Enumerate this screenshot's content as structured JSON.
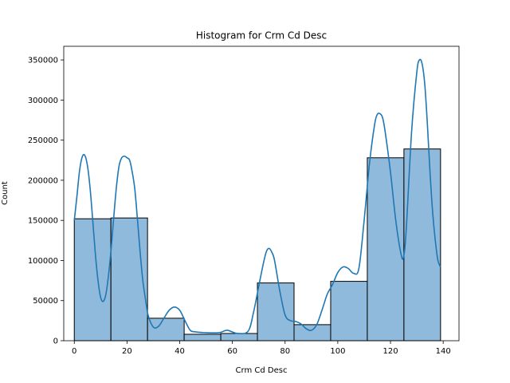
{
  "chart_data": {
    "type": "bar",
    "subtype": "histogram-with-kde",
    "title": "Histogram for Crm Cd Desc",
    "xlabel": "Crm Cd Desc",
    "ylabel": "Count",
    "xlim": [
      -4,
      146
    ],
    "ylim": [
      0,
      367000
    ],
    "xticks": [
      0,
      20,
      40,
      60,
      80,
      100,
      120,
      140
    ],
    "yticks": [
      0,
      50000,
      100000,
      150000,
      200000,
      250000,
      300000,
      350000
    ],
    "grid": false,
    "bins": [
      {
        "x0": 0,
        "x1": 13.9,
        "count": 152000
      },
      {
        "x0": 13.9,
        "x1": 27.8,
        "count": 153000
      },
      {
        "x0": 27.8,
        "x1": 41.7,
        "count": 28000
      },
      {
        "x0": 41.7,
        "x1": 55.6,
        "count": 8000
      },
      {
        "x0": 55.6,
        "x1": 69.5,
        "count": 9000
      },
      {
        "x0": 69.5,
        "x1": 83.4,
        "count": 72000
      },
      {
        "x0": 83.4,
        "x1": 97.3,
        "count": 20000
      },
      {
        "x0": 97.3,
        "x1": 111.2,
        "count": 74000
      },
      {
        "x0": 111.2,
        "x1": 125.1,
        "count": 228000
      },
      {
        "x0": 125.1,
        "x1": 139,
        "count": 239000
      }
    ],
    "kde": {
      "x": [
        0,
        1,
        2,
        3,
        4,
        5,
        6,
        7,
        8,
        9,
        10,
        11,
        12,
        13,
        14,
        15,
        16,
        17,
        18,
        19,
        20,
        21,
        22,
        23,
        24,
        25,
        26,
        27,
        28,
        30,
        32,
        34,
        36,
        38,
        40,
        42,
        44,
        46,
        50,
        55,
        58,
        62,
        66,
        68,
        70,
        72,
        73,
        74,
        75,
        76,
        78,
        80,
        82,
        84,
        86,
        88,
        90,
        92,
        94,
        96,
        98,
        100,
        102,
        104,
        106,
        108,
        110,
        112,
        114,
        115,
        116,
        117,
        118,
        120,
        122,
        124,
        125,
        126,
        128,
        130,
        131,
        132,
        133,
        134,
        135,
        136,
        137,
        138,
        139
      ],
      "y": [
        150000,
        180000,
        212000,
        229000,
        231000,
        218000,
        190000,
        150000,
        108000,
        75000,
        54000,
        49000,
        58000,
        82000,
        115000,
        155000,
        192000,
        218000,
        228000,
        230000,
        228000,
        225000,
        210000,
        188000,
        150000,
        110000,
        75000,
        52000,
        32000,
        17000,
        18000,
        28000,
        38000,
        42000,
        38000,
        25000,
        13000,
        11000,
        10000,
        10000,
        13000,
        9000,
        12000,
        35000,
        68000,
        100000,
        112000,
        115000,
        110000,
        100000,
        62000,
        32000,
        25000,
        24000,
        21000,
        15000,
        13000,
        20000,
        38000,
        58000,
        70000,
        85000,
        92000,
        90000,
        84000,
        90000,
        150000,
        220000,
        270000,
        282000,
        283000,
        278000,
        260000,
        210000,
        150000,
        108000,
        105000,
        140000,
        260000,
        335000,
        350000,
        345000,
        320000,
        270000,
        210000,
        160000,
        125000,
        100000,
        92000
      ]
    },
    "colors": {
      "bar_fill": "#90badc",
      "bar_edge": "#000000",
      "kde_line": "#1f77b4"
    }
  }
}
